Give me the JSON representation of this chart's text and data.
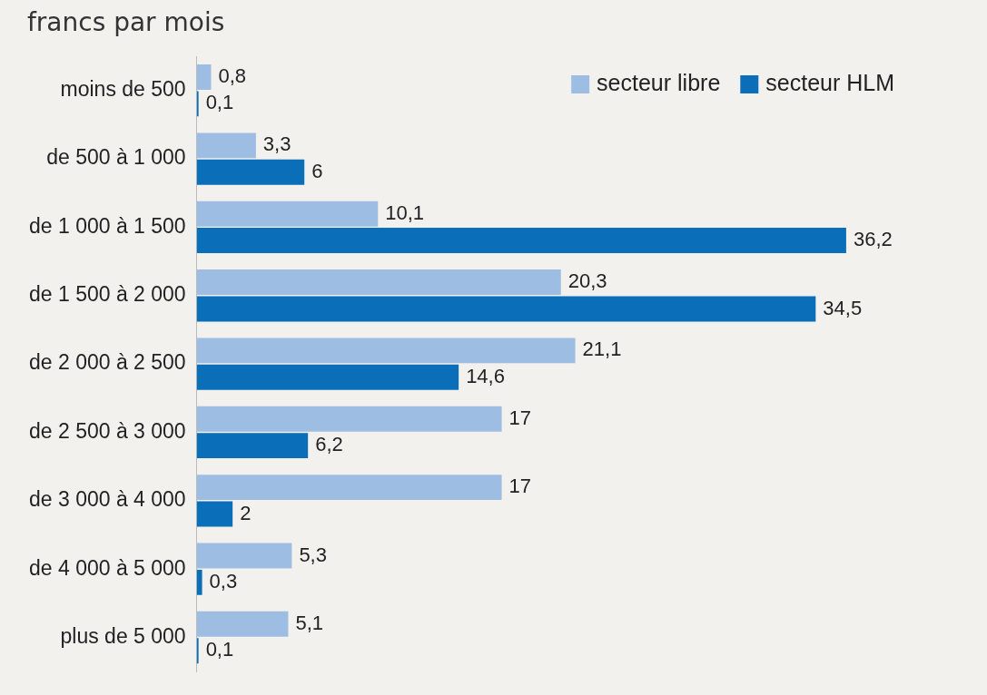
{
  "chart_data": {
    "type": "bar",
    "orientation": "horizontal",
    "title": "francs par mois",
    "categories": [
      "moins de 500",
      "de 500 à 1 000",
      "de 1 000 à 1 500",
      "de 1 500 à 2 000",
      "de 2 000 à 2 500",
      "de 2 500 à 3 000",
      "de 3 000 à 4 000",
      "de 4 000 à 5 000",
      "plus de 5 000"
    ],
    "series": [
      {
        "name": "secteur libre",
        "color": "#9dbde3",
        "values": [
          0.8,
          3.3,
          10.1,
          20.3,
          21.1,
          17,
          17,
          5.3,
          5.1
        ],
        "value_labels": [
          "0,8",
          "3,3",
          "10,1",
          "20,3",
          "21,1",
          "17",
          "17",
          "5,3",
          "5,1"
        ]
      },
      {
        "name": "secteur HLM",
        "color": "#0a6eb8",
        "values": [
          0.1,
          6,
          36.2,
          34.5,
          14.6,
          6.2,
          2,
          0.3,
          0.1
        ],
        "value_labels": [
          "0,1",
          "6",
          "36,2",
          "34,5",
          "14,6",
          "6,2",
          "2",
          "0,3",
          "0,1"
        ]
      }
    ],
    "legend": "top right"
  }
}
